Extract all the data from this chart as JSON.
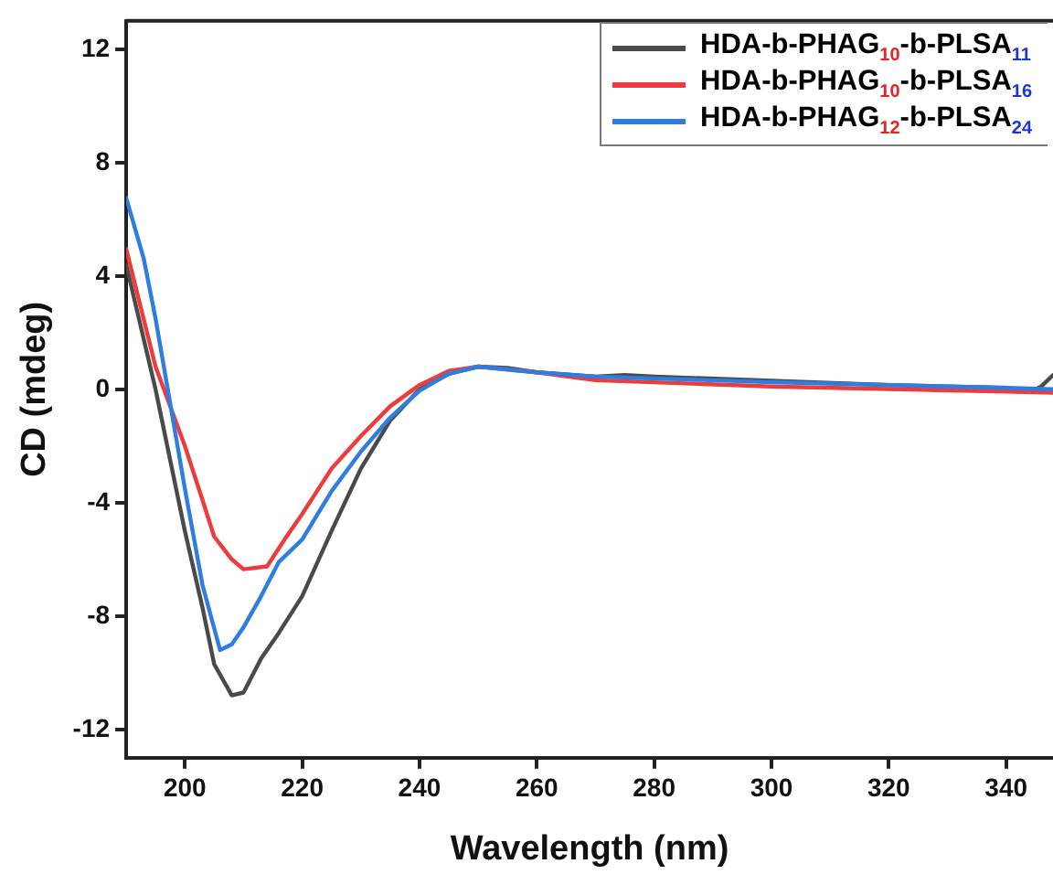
{
  "chart_data": {
    "type": "line",
    "xlabel": "Wavelength (nm)",
    "ylabel": "CD (mdeg)",
    "xlim": [
      190,
      348
    ],
    "xticks": [
      200,
      220,
      240,
      260,
      280,
      300,
      320,
      340
    ],
    "ylim": [
      -13,
      13
    ],
    "yticks": [
      -12,
      -8,
      -4,
      0,
      4,
      8,
      12
    ],
    "grid": false,
    "legend": "top right",
    "marker": "none",
    "line_style": "solid",
    "series": [
      {
        "name": "HDA-b-PHAG$_{10}$-b-PLSA$_{11}$",
        "color": "#4a4a4a",
        "x": [
          190,
          195,
          200,
          203,
          205,
          208,
          210,
          213,
          216,
          220,
          225,
          230,
          235,
          240,
          245,
          250,
          255,
          260,
          270,
          275,
          280,
          300,
          320,
          340,
          344,
          346,
          348
        ],
        "values": [
          4.4,
          0,
          -5.0,
          -7.7,
          -9.7,
          -10.8,
          -10.7,
          -9.5,
          -8.6,
          -7.3,
          -5.0,
          -2.8,
          -1.1,
          0,
          0.55,
          0.8,
          0.75,
          0.6,
          0.45,
          0.5,
          0.45,
          0.3,
          0.15,
          0.05,
          -0.1,
          0.1,
          0.5
        ]
      },
      {
        "name": "HDA-b-PHAG$_{10}$-b-PLSA$_{16}$",
        "color": "#ee3b3b",
        "x": [
          190,
          195,
          200,
          203,
          205,
          208,
          210,
          214,
          217,
          220,
          225,
          230,
          235,
          240,
          245,
          250,
          260,
          270,
          300,
          340,
          348
        ],
        "values": [
          4.95,
          0.8,
          -2.0,
          -3.9,
          -5.2,
          -6.0,
          -6.35,
          -6.25,
          -5.3,
          -4.4,
          -2.8,
          -1.65,
          -0.6,
          0.15,
          0.65,
          0.8,
          0.6,
          0.32,
          0.1,
          -0.08,
          -0.12
        ]
      },
      {
        "name": "HDA-b-PHAG$_{12}$-b-PLSA$_{24}$",
        "color": "#2f7de1",
        "x": [
          190,
          193,
          195,
          200,
          203,
          206,
          208,
          210,
          213,
          216,
          220,
          225,
          230,
          235,
          240,
          245,
          250,
          260,
          270,
          300,
          340,
          348
        ],
        "values": [
          6.75,
          4.6,
          2.5,
          -3.5,
          -6.9,
          -9.2,
          -9.0,
          -8.4,
          -7.3,
          -6.1,
          -5.3,
          -3.6,
          -2.2,
          -1.0,
          -0.05,
          0.55,
          0.8,
          0.6,
          0.45,
          0.25,
          0.05,
          0
        ]
      }
    ]
  }
}
